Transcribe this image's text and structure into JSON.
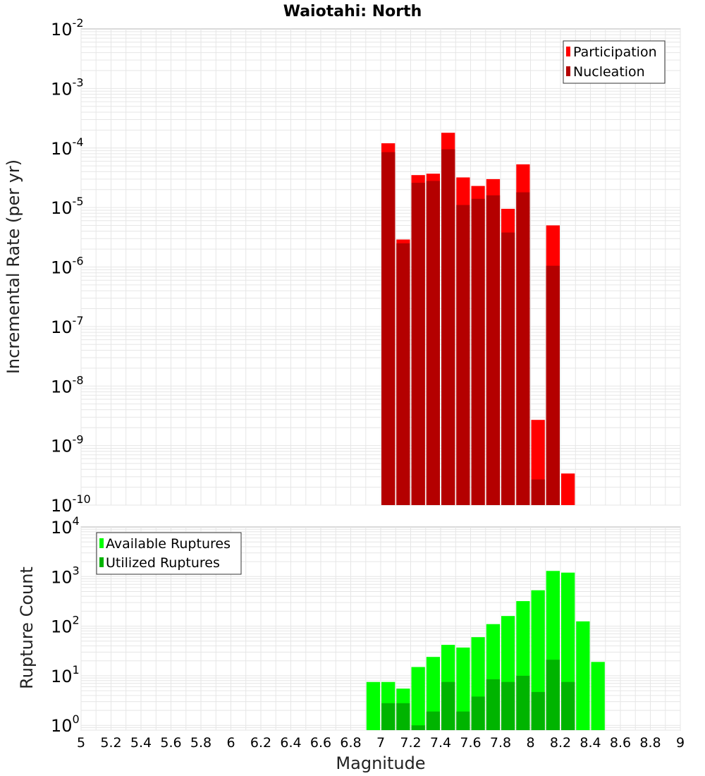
{
  "chart_data": [
    {
      "type": "bar",
      "title": "Waiotahi: North",
      "ylabel": "Incremental Rate (per yr)",
      "xlabel": "",
      "yscale": "log",
      "ylim": [
        1e-10,
        0.01
      ],
      "xlim": [
        5,
        9
      ],
      "ytick_exponents": [
        -10,
        -9,
        -8,
        -7,
        -6,
        -5,
        -4,
        -3,
        -2
      ],
      "grid": true,
      "legend_position": "top-right",
      "x": [
        7.05,
        7.15,
        7.25,
        7.35,
        7.45,
        7.55,
        7.65,
        7.75,
        7.85,
        7.95,
        8.05,
        8.15,
        8.25
      ],
      "series": [
        {
          "name": "Participation",
          "color": "#ff0000",
          "values": [
            0.00012,
            2.9e-06,
            3.5e-05,
            3.7e-05,
            0.00018,
            3.2e-05,
            2.3e-05,
            3e-05,
            9.5e-06,
            5.3e-05,
            2.7e-09,
            5e-06,
            3.4e-10
          ]
        },
        {
          "name": "Nucleation",
          "color": "#b40000",
          "values": [
            8.5e-05,
            2.5e-06,
            2.6e-05,
            2.8e-05,
            9.5e-05,
            1.1e-05,
            1.4e-05,
            1.6e-05,
            3.8e-06,
            1.8e-05,
            2.7e-10,
            1.05e-06,
            null
          ]
        }
      ]
    },
    {
      "type": "bar",
      "title": "",
      "ylabel": "Rupture Count",
      "xlabel": "Magnitude",
      "yscale": "log",
      "ylim": [
        0.8,
        10000
      ],
      "xlim": [
        5,
        9
      ],
      "ytick_exponents": [
        0,
        1,
        2,
        3,
        4
      ],
      "grid": true,
      "legend_position": "top-left",
      "x": [
        6.95,
        7.05,
        7.15,
        7.25,
        7.35,
        7.45,
        7.55,
        7.65,
        7.75,
        7.85,
        7.95,
        8.05,
        8.15,
        8.25,
        8.35,
        8.45
      ],
      "series": [
        {
          "name": "Available Ruptures",
          "color": "#00ff00",
          "values": [
            7.5,
            7.5,
            5.5,
            15,
            24,
            42,
            37,
            60,
            110,
            160,
            320,
            530,
            1300,
            1200,
            125,
            19
          ]
        },
        {
          "name": "Utilized Ruptures",
          "color": "#00b400",
          "values": [
            null,
            2.8,
            2.8,
            1,
            1.9,
            7.5,
            1.9,
            3.8,
            8.5,
            7.5,
            10,
            4.7,
            21,
            7.5,
            null,
            null
          ]
        }
      ]
    }
  ],
  "x_ticks": [
    "5",
    "5.2",
    "5.4",
    "5.6",
    "5.8",
    "6",
    "6.2",
    "6.4",
    "6.6",
    "6.8",
    "7",
    "7.2",
    "7.4",
    "7.6",
    "7.8",
    "8",
    "8.2",
    "8.4",
    "8.6",
    "8.8",
    "9"
  ],
  "x_tick_values": [
    5,
    5.2,
    5.4,
    5.6,
    5.8,
    6,
    6.2,
    6.4,
    6.6,
    6.8,
    7,
    7.2,
    7.4,
    7.6,
    7.8,
    8,
    8.2,
    8.4,
    8.6,
    8.8,
    9
  ],
  "bar_width": 0.1,
  "y_tick_base": "10",
  "colors": {
    "grid": "#e6e6e6",
    "frame": "#b5b5b5",
    "background": "#ffffff"
  }
}
